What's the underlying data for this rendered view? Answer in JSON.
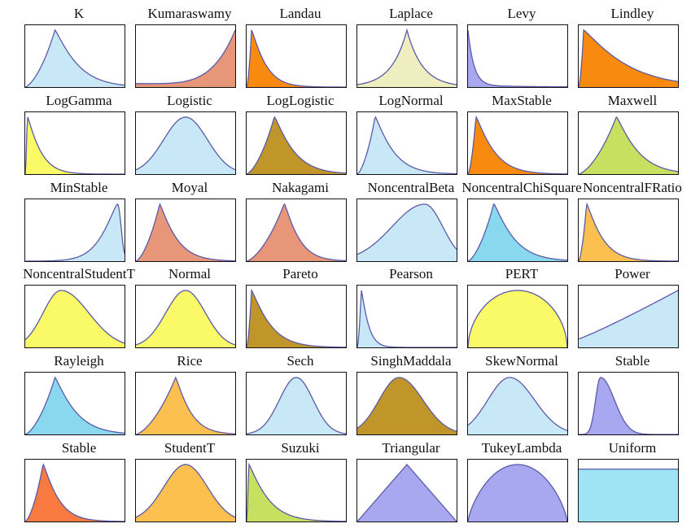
{
  "chart_data": [
    {
      "type": "area",
      "title": "K",
      "color": "#c8e8f8",
      "shape": {
        "k": "gamma",
        "mode": 0.3,
        "sk": 1.3
      }
    },
    {
      "type": "area",
      "title": "Kumaraswamy",
      "color": "#e8967a",
      "shape": {
        "k": "rise",
        "p": 4.5,
        "base": 0.06
      }
    },
    {
      "type": "area",
      "title": "Landau",
      "color": "#f88a10",
      "shape": {
        "k": "gamma",
        "mode": 0.05,
        "sk": 0.6
      }
    },
    {
      "type": "area",
      "title": "Laplace",
      "color": "#eeeec0",
      "shape": {
        "k": "laplace",
        "mode": 0.5,
        "s": 0.22
      }
    },
    {
      "type": "area",
      "title": "Levy",
      "color": "#a8a8f0",
      "shape": {
        "k": "decay",
        "s": 0.06
      }
    },
    {
      "type": "area",
      "title": "Lindley",
      "color": "#f88a10",
      "shape": {
        "k": "gamma",
        "mode": 0.05,
        "sk": 1.8
      }
    },
    {
      "type": "area",
      "title": "LogGamma",
      "color": "#fafa68",
      "shape": {
        "k": "gamma",
        "mode": 0.02,
        "sk": 0.55
      }
    },
    {
      "type": "area",
      "title": "Logistic",
      "color": "#c8e8f8",
      "shape": {
        "k": "gauss",
        "mode": 0.5,
        "s": 0.22
      }
    },
    {
      "type": "area",
      "title": "LogLogistic",
      "color": "#c0962a",
      "shape": {
        "k": "gamma",
        "mode": 0.28,
        "sk": 1.1
      }
    },
    {
      "type": "area",
      "title": "LogNormal",
      "color": "#c8e8f8",
      "shape": {
        "k": "gamma",
        "mode": 0.18,
        "sk": 0.9
      }
    },
    {
      "type": "area",
      "title": "MaxStable",
      "color": "#f88a10",
      "shape": {
        "k": "gamma",
        "mode": 0.08,
        "sk": 0.8
      }
    },
    {
      "type": "area",
      "title": "Maxwell",
      "color": "#c8e060",
      "shape": {
        "k": "gamma",
        "mode": 0.38,
        "sk": 1.4
      }
    },
    {
      "type": "area",
      "title": "MinStable",
      "color": "#c8e8f8",
      "shape": {
        "k": "rightskew",
        "mode": 0.93,
        "s": 0.35
      }
    },
    {
      "type": "area",
      "title": "Moyal",
      "color": "#e8967a",
      "shape": {
        "k": "gamma",
        "mode": 0.24,
        "sk": 0.9
      }
    },
    {
      "type": "area",
      "title": "Nakagami",
      "color": "#e8967a",
      "shape": {
        "k": "gamma",
        "mode": 0.38,
        "sk": 0.95
      }
    },
    {
      "type": "area",
      "title": "NoncentralBeta",
      "color": "#c8e8f8",
      "shape": {
        "k": "asym",
        "mode": 0.68,
        "sl": 0.33,
        "sr": 0.18
      }
    },
    {
      "type": "area",
      "title": "NoncentralChiSquare",
      "color": "#8ad8f0",
      "shape": {
        "k": "gamma",
        "mode": 0.26,
        "sk": 1.1
      }
    },
    {
      "type": "area",
      "title": "NoncentralFRatio",
      "color": "#fcc050",
      "shape": {
        "k": "gamma",
        "mode": 0.08,
        "sk": 0.7
      }
    },
    {
      "type": "area",
      "title": "NoncentralStudentT",
      "color": "#fafa68",
      "shape": {
        "k": "asym",
        "mode": 0.36,
        "sl": 0.18,
        "sr": 0.28
      }
    },
    {
      "type": "area",
      "title": "Normal",
      "color": "#fafa68",
      "shape": {
        "k": "gauss",
        "mode": 0.5,
        "s": 0.2
      }
    },
    {
      "type": "area",
      "title": "Pareto",
      "color": "#c0962a",
      "shape": {
        "k": "gamma",
        "mode": 0.05,
        "sk": 0.8
      }
    },
    {
      "type": "area",
      "title": "Pearson",
      "color": "#c8e8f8",
      "shape": {
        "k": "gamma",
        "mode": 0.04,
        "sk": 0.3
      }
    },
    {
      "type": "area",
      "title": "PERT",
      "color": "#fafa68",
      "shape": {
        "k": "dome",
        "p": 0.55
      }
    },
    {
      "type": "area",
      "title": "Power",
      "color": "#c8e8f8",
      "shape": {
        "k": "rise",
        "p": 1.1,
        "base": 0.15
      }
    },
    {
      "type": "area",
      "title": "Rayleigh",
      "color": "#8ad8f0",
      "shape": {
        "k": "gamma",
        "mode": 0.3,
        "sk": 1.2
      }
    },
    {
      "type": "area",
      "title": "Rice",
      "color": "#fcc050",
      "shape": {
        "k": "gamma",
        "mode": 0.4,
        "sk": 1.0
      }
    },
    {
      "type": "area",
      "title": "Sech",
      "color": "#c8e8f8",
      "shape": {
        "k": "gauss",
        "mode": 0.5,
        "s": 0.17
      }
    },
    {
      "type": "area",
      "title": "SinghMaddala",
      "color": "#c0962a",
      "shape": {
        "k": "asym",
        "mode": 0.42,
        "sl": 0.2,
        "sr": 0.24
      }
    },
    {
      "type": "area",
      "title": "SkewNormal",
      "color": "#c8e8f8",
      "shape": {
        "k": "asym",
        "mode": 0.42,
        "sl": 0.22,
        "sr": 0.25
      }
    },
    {
      "type": "area",
      "title": "Stable",
      "color": "#a8a8f0",
      "shape": {
        "k": "asym",
        "mode": 0.22,
        "sl": 0.05,
        "sr": 0.14
      }
    },
    {
      "type": "area",
      "title": "Stable",
      "color": "#f87a40",
      "shape": {
        "k": "gamma",
        "mode": 0.18,
        "sk": 0.75
      }
    },
    {
      "type": "area",
      "title": "StudentT",
      "color": "#fcc050",
      "shape": {
        "k": "gauss",
        "mode": 0.5,
        "s": 0.22
      }
    },
    {
      "type": "area",
      "title": "Suzuki",
      "color": "#c8e060",
      "shape": {
        "k": "gamma",
        "mode": 0.02,
        "sk": 0.8
      }
    },
    {
      "type": "area",
      "title": "Triangular",
      "color": "#a8a8f0",
      "shape": {
        "k": "tri",
        "mode": 0.5
      }
    },
    {
      "type": "area",
      "title": "TukeyLambda",
      "color": "#a8a8f0",
      "shape": {
        "k": "dome",
        "p": 0.75
      }
    },
    {
      "type": "area",
      "title": "Uniform",
      "color": "#9ee4f4",
      "shape": {
        "k": "uniform"
      }
    }
  ]
}
